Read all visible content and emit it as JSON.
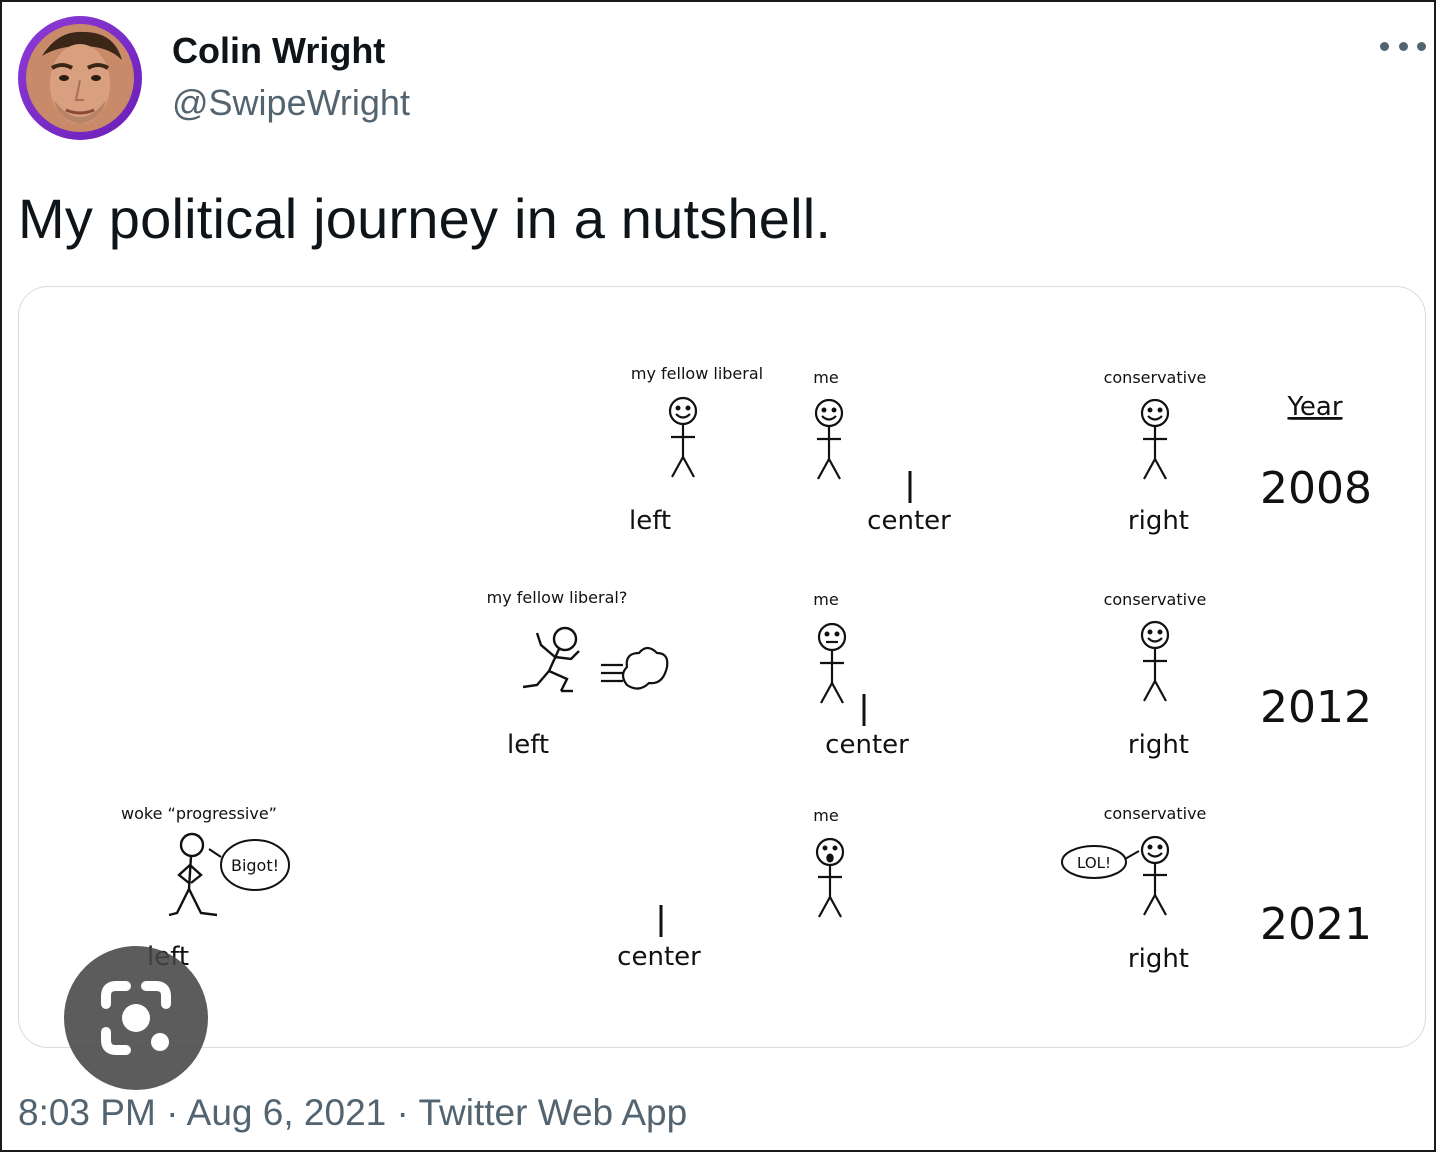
{
  "author": {
    "display_name": "Colin Wright",
    "handle": "@SwipeWright"
  },
  "tweet": {
    "text": "My political journey in a nutshell."
  },
  "meta": {
    "time": "8:03 PM",
    "separator": "·",
    "date": "Aug 6, 2021",
    "source": "Twitter Web App"
  },
  "comic": {
    "year_header": "Year",
    "rows": [
      {
        "year": "2008",
        "label_left": "left",
        "label_center": "center",
        "label_right": "right",
        "fellow_caption": "my fellow liberal",
        "me_caption": "me",
        "conservative_caption": "conservative"
      },
      {
        "year": "2012",
        "label_left": "left",
        "label_center": "center",
        "label_right": "right",
        "fellow_caption": "my fellow liberal?",
        "me_caption": "me",
        "conservative_caption": "conservative"
      },
      {
        "year": "2021",
        "label_left": "left",
        "label_center": "center",
        "label_right": "right",
        "fellow_caption": "woke “progressive”",
        "me_caption": "me",
        "conservative_caption": "conservative",
        "fellow_speech": "Bigot!",
        "conservative_speech": "LOL!"
      }
    ],
    "colors": {
      "left": "#4a7cc9",
      "right": "#d9534a",
      "blend": "#7a4a8c"
    }
  },
  "icons": {
    "more": "more-horizontal-icon",
    "lens": "camera-search-icon"
  }
}
